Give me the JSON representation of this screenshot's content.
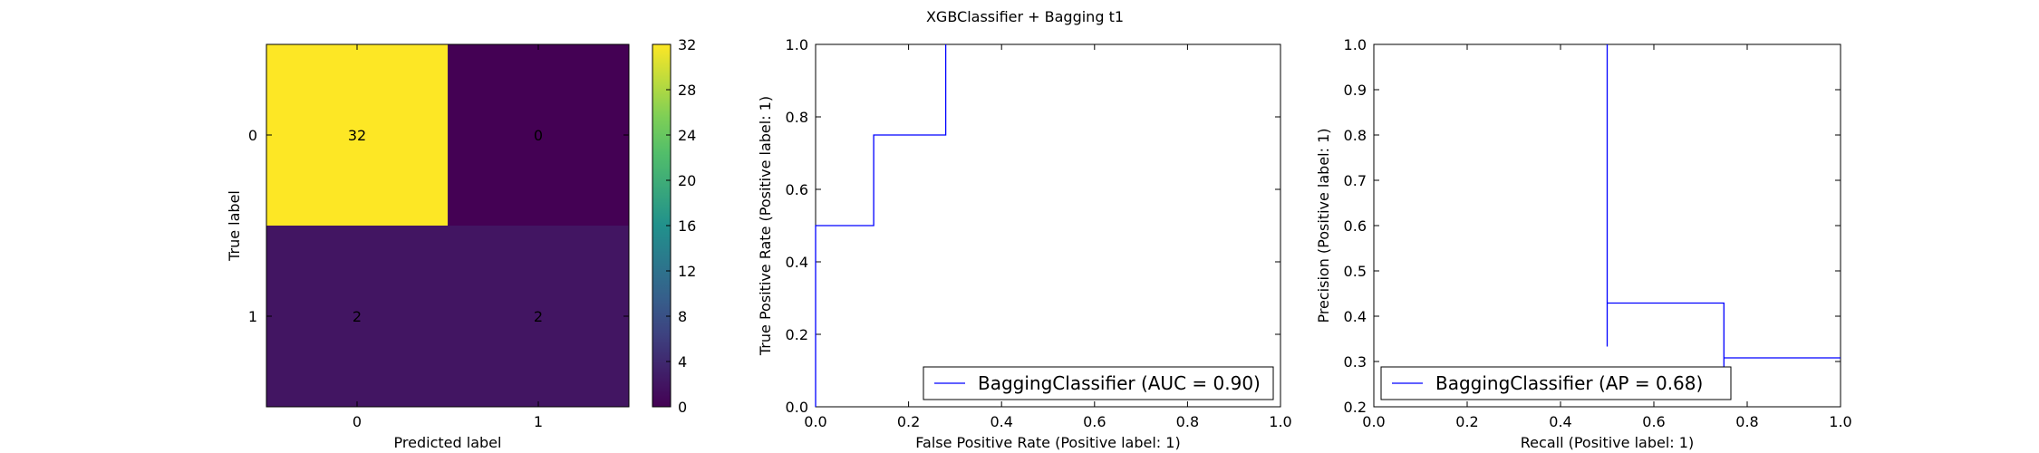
{
  "figure_title": "XGBClassifier + Bagging t1",
  "colors": {
    "line": "#0000ff",
    "cm_high": "#fde725",
    "cm_low": "#440154",
    "cm_mid": "#46327e",
    "text_on_dark": "#fde725",
    "text_on_light": "#440154"
  },
  "chart_data": [
    {
      "type": "heatmap",
      "title": "",
      "xlabel": "Predicted label",
      "ylabel": "True label",
      "x_categories": [
        "0",
        "1"
      ],
      "y_categories": [
        "0",
        "1"
      ],
      "values": [
        [
          32,
          0
        ],
        [
          2,
          2
        ]
      ],
      "colorbar": {
        "colormap": "viridis",
        "range": [
          0,
          32
        ],
        "ticks": [
          "0",
          "4",
          "8",
          "12",
          "16",
          "20",
          "24",
          "28",
          "32"
        ]
      }
    },
    {
      "type": "line",
      "xlabel": "False Positive Rate (Positive label: 1)",
      "ylabel": "True Positive Rate (Positive label: 1)",
      "xlim": [
        0,
        1
      ],
      "ylim": [
        0,
        1
      ],
      "xticks": [
        "0.0",
        "0.2",
        "0.4",
        "0.6",
        "0.8",
        "1.0"
      ],
      "yticks": [
        "0.0",
        "0.2",
        "0.4",
        "0.6",
        "0.8",
        "1.0"
      ],
      "series": [
        {
          "name": "BaggingClassifier (AUC = 0.90)",
          "x": [
            0,
            0,
            0.125,
            0.125,
            0.28,
            0.28
          ],
          "y": [
            0,
            0.5,
            0.5,
            0.75,
            0.75,
            1.0
          ]
        }
      ],
      "legend_position": "lower-right"
    },
    {
      "type": "line",
      "xlabel": "Recall (Positive label: 1)",
      "ylabel": "Precision (Positive label: 1)",
      "xlim": [
        0,
        1
      ],
      "ylim": [
        0.2,
        1
      ],
      "xticks": [
        "0.0",
        "0.2",
        "0.4",
        "0.6",
        "0.8",
        "1.0"
      ],
      "yticks": [
        "0.2",
        "0.3",
        "0.4",
        "0.5",
        "0.6",
        "0.7",
        "0.8",
        "0.9",
        "1.0"
      ],
      "series": [
        {
          "name": "BaggingClassifier (AP = 0.68)",
          "x": [
            0.5,
            0.5,
            0.5,
            0.75,
            0.75,
            0.75,
            1.0
          ],
          "y": [
            1.0,
            0.333,
            0.429,
            0.429,
            0.25,
            0.308,
            0.308
          ]
        }
      ],
      "legend_position": "lower-left"
    }
  ]
}
